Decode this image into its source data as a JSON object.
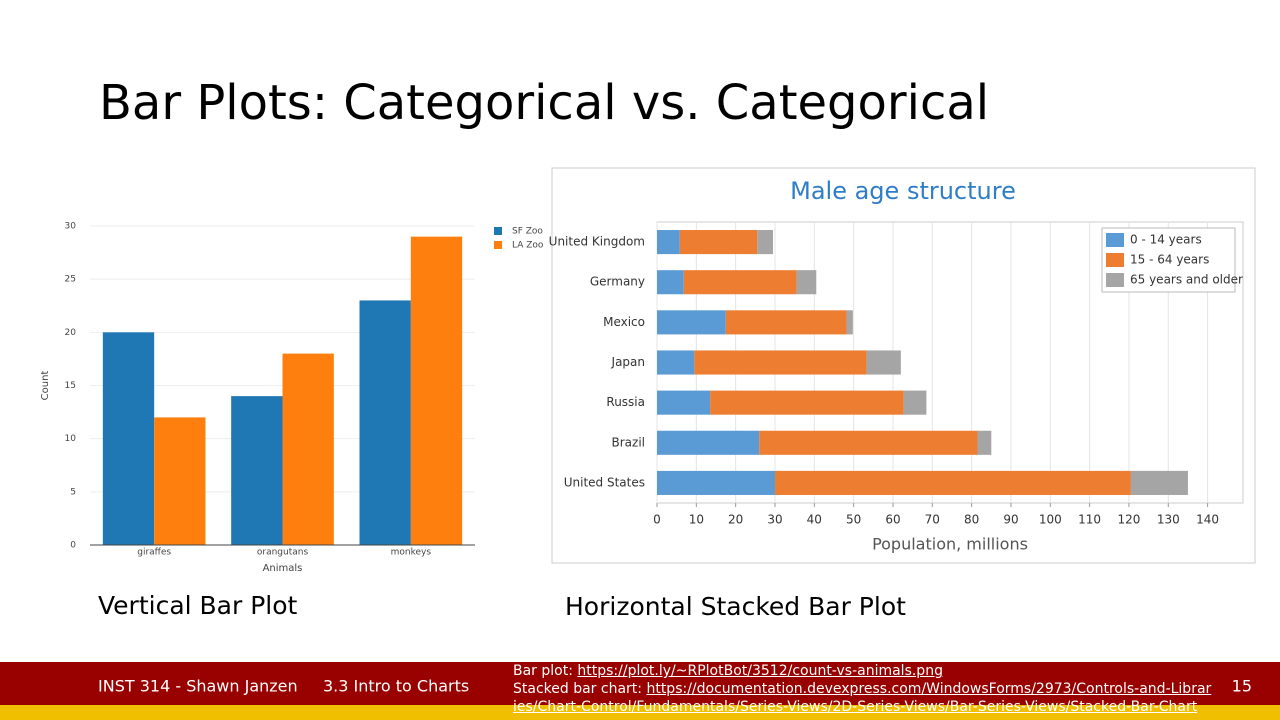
{
  "slide": {
    "title": "Bar Plots: Categorical vs. Categorical",
    "captions": [
      "Vertical Bar Plot",
      "Horizontal Stacked Bar Plot"
    ],
    "footer": {
      "course": "INST 314 - Shawn Janzen",
      "section": "3.3 Intro to Charts",
      "sources": [
        {
          "label": "Bar plot:",
          "url": "https://plot.ly/~RPlotBot/3512/count-vs-animals.png"
        },
        {
          "label": "Stacked bar chart:",
          "url": "https://documentation.devexpress.com/WindowsForms/2973/Controls-and-Libraries/Chart-Control/Fundamentals/Series-Views/2D-Series-Views/Bar-Series-Views/Stacked-Bar-Chart"
        }
      ],
      "page": "15"
    }
  },
  "chart_data": [
    {
      "type": "bar",
      "horizontal": false,
      "stacked": false,
      "grid": true,
      "legend": "outside-right",
      "xlabel": "Animals",
      "ylabel": "Count",
      "categories": [
        "giraffes",
        "orangutans",
        "monkeys"
      ],
      "series": [
        {
          "name": "SF Zoo",
          "color": "#1f77b4",
          "values": [
            20,
            14,
            23
          ]
        },
        {
          "name": "LA Zoo",
          "color": "#ff7f0e",
          "values": [
            12,
            18,
            29
          ]
        }
      ],
      "ylim": [
        0,
        30
      ],
      "yticks": [
        0,
        5,
        10,
        15,
        20,
        25,
        30
      ]
    },
    {
      "type": "bar",
      "horizontal": true,
      "stacked": true,
      "grid": true,
      "legend": "top-right",
      "title": "Male age structure",
      "xlabel": "Population, millions",
      "categories": [
        "United Kingdom",
        "Germany",
        "Mexico",
        "Japan",
        "Russia",
        "Brazil",
        "United States"
      ],
      "series": [
        {
          "name": "0 - 14 years",
          "color": "#5b9bd5",
          "values": [
            5.8,
            6.8,
            17.5,
            9.5,
            13.5,
            26,
            30
          ]
        },
        {
          "name": "15 - 64 years",
          "color": "#ed7d31",
          "values": [
            19.7,
            28.7,
            30.7,
            43.8,
            49.2,
            55.5,
            90.5
          ]
        },
        {
          "name": "65 years and older",
          "color": "#a5a5a5",
          "values": [
            4,
            5,
            1.6,
            8.7,
            5.8,
            3.5,
            14.5
          ]
        }
      ],
      "xlim": [
        0,
        149
      ],
      "xticks": [
        0,
        10,
        20,
        30,
        40,
        50,
        60,
        70,
        80,
        90,
        100,
        110,
        120,
        130,
        140
      ]
    }
  ]
}
